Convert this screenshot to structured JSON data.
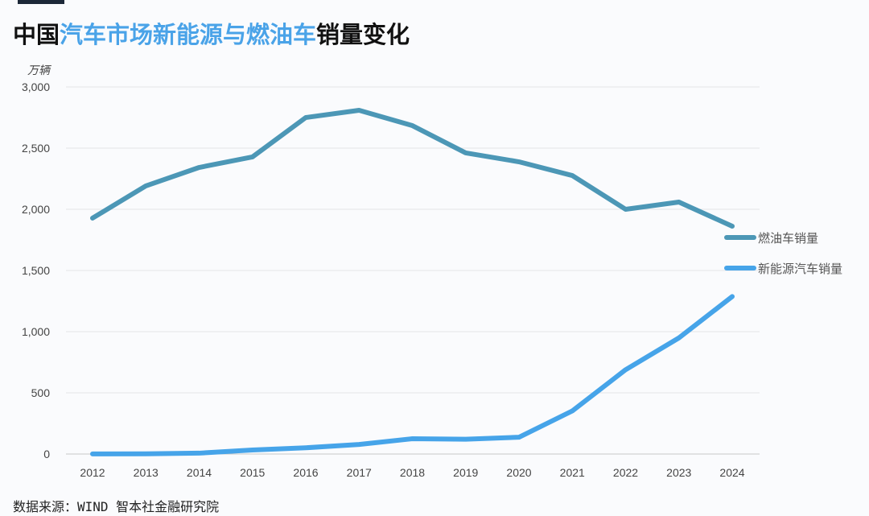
{
  "title": {
    "part1": "中国",
    "part2": "汽车市场新能源与燃油车",
    "part3": "销量变化"
  },
  "source": "数据来源：WIND 智本社金融研究院",
  "colors": {
    "fuel": "#4c97b6",
    "nev": "#46a4e9",
    "title_highlight": "#4aa3e8"
  },
  "chart_data": {
    "type": "line",
    "title": "中国汽车市场新能源与燃油车销量变化",
    "ylabel": "万辆",
    "ylim": [
      0,
      3000
    ],
    "yticks": [
      0,
      500,
      1000,
      1500,
      2000,
      2500,
      3000
    ],
    "ytick_labels": [
      "0",
      "500",
      "1,000",
      "1,500",
      "2,000",
      "2,500",
      "3,000"
    ],
    "categories": [
      "2012",
      "2013",
      "2014",
      "2015",
      "2016",
      "2017",
      "2018",
      "2019",
      "2020",
      "2021",
      "2022",
      "2023",
      "2024"
    ],
    "grid": true,
    "legend": "right",
    "series": [
      {
        "name": "燃油车销量",
        "values": [
          1928,
          2191,
          2342,
          2428,
          2750,
          2809,
          2684,
          2461,
          2388,
          2276,
          2000,
          2059,
          1862
        ]
      },
      {
        "name": "新能源汽车销量",
        "values": [
          1,
          2,
          7,
          33,
          51,
          78,
          125,
          121,
          137,
          352,
          689,
          949,
          1287
        ]
      }
    ]
  }
}
